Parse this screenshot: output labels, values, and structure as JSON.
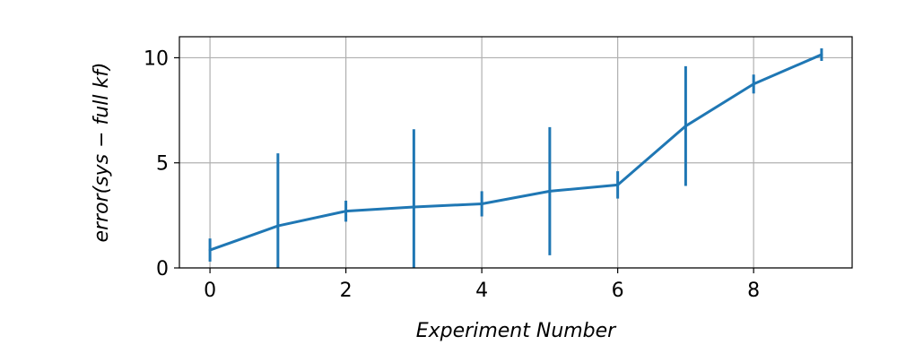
{
  "chart_data": {
    "type": "line",
    "title": "",
    "xlabel": "Experiment Number",
    "ylabel": "error(sys − full kf)",
    "xlim": [
      -0.45,
      9.45
    ],
    "ylim": [
      0,
      11.0
    ],
    "xticks": [
      0,
      2,
      4,
      6,
      8
    ],
    "yticks": [
      0,
      5,
      10
    ],
    "grid": true,
    "legend": "none",
    "series": [
      {
        "x": [
          0,
          1,
          2,
          3,
          4,
          5,
          6,
          7,
          8,
          9
        ],
        "y": [
          0.85,
          2.0,
          2.7,
          2.9,
          3.05,
          3.65,
          3.95,
          6.75,
          8.75,
          10.15
        ],
        "yerr_low": [
          0.55,
          2.0,
          0.5,
          2.9,
          0.6,
          3.05,
          0.65,
          2.85,
          0.45,
          0.3
        ],
        "yerr_high": [
          0.55,
          3.45,
          0.5,
          3.7,
          0.6,
          3.05,
          0.65,
          2.85,
          0.45,
          0.3
        ]
      }
    ]
  },
  "colors": {
    "series": "#1f77b4",
    "grid": "#b0b0b0",
    "axes": "#000000"
  }
}
